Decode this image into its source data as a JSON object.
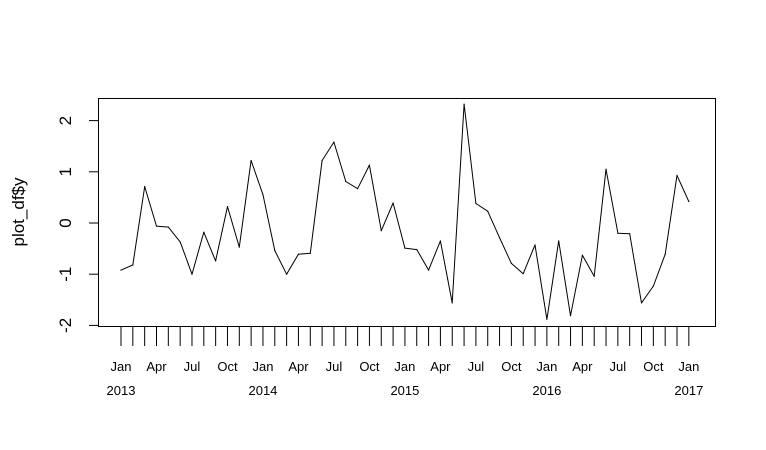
{
  "chart_data": {
    "type": "line",
    "title": "",
    "xlabel": "",
    "ylabel": "plot_df$y",
    "y_ticks": [
      "-2",
      "-1",
      "0",
      "1",
      "2"
    ],
    "ylim": [
      -2,
      2.45
    ],
    "grid": false,
    "legend": "none",
    "line_color": "#000000",
    "x_month_ticks": [
      {
        "label": "Jan",
        "month_index": 0
      },
      {
        "label": "Apr",
        "month_index": 3
      },
      {
        "label": "Jul",
        "month_index": 6
      },
      {
        "label": "Oct",
        "month_index": 9
      },
      {
        "label": "Jan",
        "month_index": 12
      },
      {
        "label": "Apr",
        "month_index": 15
      },
      {
        "label": "Jul",
        "month_index": 18
      },
      {
        "label": "Oct",
        "month_index": 21
      },
      {
        "label": "Jan",
        "month_index": 24
      },
      {
        "label": "Apr",
        "month_index": 27
      },
      {
        "label": "Jul",
        "month_index": 30
      },
      {
        "label": "Oct",
        "month_index": 33
      },
      {
        "label": "Jan",
        "month_index": 36
      },
      {
        "label": "Apr",
        "month_index": 39
      },
      {
        "label": "Jul",
        "month_index": 42
      },
      {
        "label": "Oct",
        "month_index": 45
      },
      {
        "label": "Jan",
        "month_index": 48
      }
    ],
    "x_year_labels": [
      {
        "label": "2013",
        "month_index": 0
      },
      {
        "label": "2014",
        "month_index": 12
      },
      {
        "label": "2015",
        "month_index": 24
      },
      {
        "label": "2016",
        "month_index": 36
      },
      {
        "label": "2017",
        "month_index": 48
      }
    ],
    "series": [
      {
        "x": [
          "2013-01",
          "2013-02",
          "2013-03",
          "2013-04",
          "2013-05",
          "2013-06",
          "2013-07",
          "2013-08",
          "2013-09",
          "2013-10",
          "2013-11",
          "2013-12",
          "2014-01",
          "2014-02",
          "2014-03",
          "2014-04",
          "2014-05",
          "2014-06",
          "2014-07",
          "2014-08",
          "2014-09",
          "2014-10",
          "2014-11",
          "2014-12",
          "2015-01",
          "2015-02",
          "2015-03",
          "2015-04",
          "2015-05",
          "2015-06",
          "2015-07",
          "2015-08",
          "2015-09",
          "2015-10",
          "2015-11",
          "2015-12",
          "2016-01",
          "2016-02",
          "2016-03",
          "2016-04",
          "2016-05",
          "2016-06",
          "2016-07",
          "2016-08",
          "2016-09",
          "2016-10",
          "2016-11",
          "2016-12",
          "2017-01"
        ],
        "values": [
          -0.92,
          -0.82,
          0.71,
          -0.06,
          -0.08,
          -0.37,
          -1.0,
          -0.18,
          -0.74,
          0.32,
          -0.47,
          1.22,
          0.55,
          -0.54,
          -1.0,
          -0.61,
          -0.59,
          1.22,
          1.58,
          0.81,
          0.67,
          1.13,
          -0.15,
          0.39,
          -0.49,
          -0.52,
          -0.92,
          -0.35,
          -1.56,
          2.32,
          0.38,
          0.23,
          -0.29,
          -0.79,
          -0.99,
          -0.43,
          -1.88,
          -0.35,
          -1.81,
          -0.63,
          -1.04,
          1.05,
          -0.2,
          -0.21,
          -1.56,
          -1.23,
          -0.61,
          0.93,
          0.42
        ]
      }
    ]
  }
}
